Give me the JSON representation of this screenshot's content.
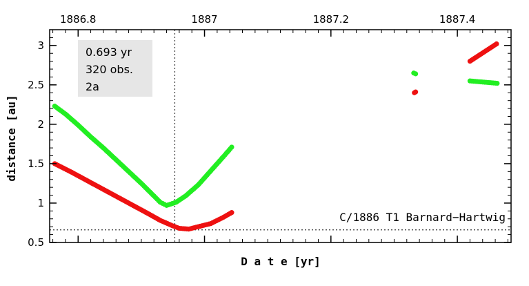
{
  "chart_data": {
    "type": "scatter",
    "xlabel": "D a t e [yr]",
    "ylabel": "distance [au]",
    "xlim": [
      1886.755,
      1887.485
    ],
    "ylim": [
      0.5,
      3.2
    ],
    "x_ticks": [
      1886.8,
      1887.0,
      1887.2,
      1887.4
    ],
    "x_tick_labels": [
      "1886.8",
      "1887",
      "1887.2",
      "1887.4"
    ],
    "y_ticks": [
      0.5,
      1,
      1.5,
      2,
      2.5,
      3
    ],
    "y_tick_labels": [
      "0.5",
      "1",
      "1.5",
      "2",
      "2.5",
      "3"
    ],
    "grid": false,
    "info_box": [
      "0.693 yr",
      "320 obs.",
      "2a"
    ],
    "object_label": "C/1886 T1 Barnard−Hartwig",
    "perihelion_date": 1886.953,
    "perihelion_distance": 0.66,
    "colors": {
      "red": "#ee1111",
      "green": "#22ee22",
      "box": "#e6e6e6"
    },
    "series": [
      {
        "color": "#ee1111",
        "points": [
          [
            1886.763,
            1.5
          ],
          [
            1886.79,
            1.39
          ],
          [
            1886.82,
            1.26
          ],
          [
            1886.85,
            1.13
          ],
          [
            1886.88,
            1.0
          ],
          [
            1886.91,
            0.87
          ],
          [
            1886.93,
            0.78
          ],
          [
            1886.95,
            0.71
          ],
          [
            1886.96,
            0.68
          ],
          [
            1886.975,
            0.67
          ],
          [
            1886.99,
            0.7
          ],
          [
            1887.01,
            0.74
          ],
          [
            1887.03,
            0.82
          ],
          [
            1887.043,
            0.88
          ],
          [
            1887.332,
            2.4
          ],
          [
            1887.334,
            2.41
          ],
          [
            1887.42,
            2.8
          ],
          [
            1887.462,
            3.02
          ]
        ]
      },
      {
        "color": "#22ee22",
        "points": [
          [
            1886.763,
            2.23
          ],
          [
            1886.78,
            2.13
          ],
          [
            1886.8,
            1.99
          ],
          [
            1886.82,
            1.84
          ],
          [
            1886.84,
            1.7
          ],
          [
            1886.86,
            1.55
          ],
          [
            1886.88,
            1.4
          ],
          [
            1886.9,
            1.25
          ],
          [
            1886.92,
            1.09
          ],
          [
            1886.93,
            1.01
          ],
          [
            1886.94,
            0.97
          ],
          [
            1886.955,
            1.01
          ],
          [
            1886.97,
            1.09
          ],
          [
            1886.99,
            1.23
          ],
          [
            1887.01,
            1.41
          ],
          [
            1887.03,
            1.59
          ],
          [
            1887.043,
            1.71
          ],
          [
            1887.331,
            2.65
          ],
          [
            1887.334,
            2.64
          ],
          [
            1887.42,
            2.55
          ],
          [
            1887.463,
            2.52
          ]
        ]
      }
    ]
  }
}
